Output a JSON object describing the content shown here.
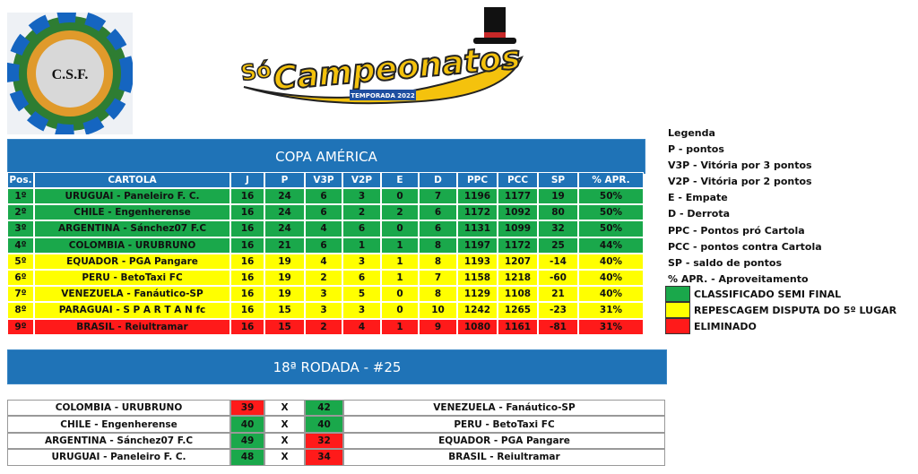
{
  "logo": {
    "text": "C.S.F."
  },
  "brand": {
    "prefix": "Só",
    "name": "Campeonatos",
    "season": "TEMPORADA 2022"
  },
  "standings": {
    "title": "COPA AMÉRICA",
    "columns": [
      "Pos.",
      "CARTOLA",
      "J",
      "P",
      "V3P",
      "V2P",
      "E",
      "D",
      "PPC",
      "PCC",
      "SP",
      "% APR."
    ],
    "rows": [
      {
        "color": "#1aa84b",
        "cells": [
          "1º",
          "URUGUAI - Paneleiro F. C.",
          "16",
          "24",
          "6",
          "3",
          "0",
          "7",
          "1196",
          "1177",
          "19",
          "50%"
        ]
      },
      {
        "color": "#1aa84b",
        "cells": [
          "2º",
          "CHILE - Engenherense",
          "16",
          "24",
          "6",
          "2",
          "2",
          "6",
          "1172",
          "1092",
          "80",
          "50%"
        ]
      },
      {
        "color": "#1aa84b",
        "cells": [
          "3º",
          "ARGENTINA - Sánchez07 F.C",
          "16",
          "24",
          "4",
          "6",
          "0",
          "6",
          "1131",
          "1099",
          "32",
          "50%"
        ]
      },
      {
        "color": "#1aa84b",
        "cells": [
          "4º",
          "COLOMBIA - URUBRUNO",
          "16",
          "21",
          "6",
          "1",
          "1",
          "8",
          "1197",
          "1172",
          "25",
          "44%"
        ]
      },
      {
        "color": "#ffff00",
        "cells": [
          "5º",
          "EQUADOR - PGA Pangare",
          "16",
          "19",
          "4",
          "3",
          "1",
          "8",
          "1193",
          "1207",
          "-14",
          "40%"
        ]
      },
      {
        "color": "#ffff00",
        "cells": [
          "6º",
          "PERU - BetoTaxi FC",
          "16",
          "19",
          "2",
          "6",
          "1",
          "7",
          "1158",
          "1218",
          "-60",
          "40%"
        ]
      },
      {
        "color": "#ffff00",
        "cells": [
          "7º",
          "VENEZUELA - Fanáutico-SP",
          "16",
          "19",
          "3",
          "5",
          "0",
          "8",
          "1129",
          "1108",
          "21",
          "40%"
        ]
      },
      {
        "color": "#ffff00",
        "cells": [
          "8º",
          "PARAGUAI - S P A R T A N fc",
          "16",
          "15",
          "3",
          "3",
          "0",
          "10",
          "1242",
          "1265",
          "-23",
          "31%"
        ]
      },
      {
        "color": "#ff1a1a",
        "cells": [
          "9º",
          "BRASIL - Reiultramar",
          "16",
          "15",
          "2",
          "4",
          "1",
          "9",
          "1080",
          "1161",
          "-81",
          "31%"
        ]
      }
    ]
  },
  "legend": {
    "title": "Legenda",
    "items": [
      "P - pontos",
      "V3P - Vitória por 3 pontos",
      "V2P - Vitória por 2 pontos",
      "E - Empate",
      "D - Derrota",
      "PPC - Pontos pró Cartola",
      "PCC - pontos contra Cartola",
      "SP - saldo de pontos",
      "% APR. - Aproveitamento"
    ],
    "zones": [
      {
        "color": "#1aa84b",
        "label": "CLASSIFICADO SEMI FINAL"
      },
      {
        "color": "#ffff00",
        "label": "REPESCAGEM DISPUTA DO 5º LUGAR"
      },
      {
        "color": "#ff1a1a",
        "label": "ELIMINADO"
      }
    ]
  },
  "round": {
    "title": "18ª RODADA - #25",
    "matches": [
      {
        "home": "COLOMBIA - URUBRUNO",
        "home_score": "39",
        "home_color": "#ff1a1a",
        "sep": "X",
        "away_score": "42",
        "away_color": "#1aa84b",
        "away": "VENEZUELA - Fanáutico-SP"
      },
      {
        "home": "CHILE - Engenherense",
        "home_score": "40",
        "home_color": "#1aa84b",
        "sep": "X",
        "away_score": "40",
        "away_color": "#1aa84b",
        "away": "PERU - BetoTaxi FC"
      },
      {
        "home": "ARGENTINA - Sánchez07 F.C",
        "home_score": "49",
        "home_color": "#1aa84b",
        "sep": "X",
        "away_score": "32",
        "away_color": "#ff1a1a",
        "away": "EQUADOR - PGA Pangare"
      },
      {
        "home": "URUGUAI - Paneleiro F. C.",
        "home_score": "48",
        "home_color": "#1aa84b",
        "sep": "X",
        "away_score": "34",
        "away_color": "#ff1a1a",
        "away": "BRASIL - Reiultramar"
      }
    ]
  }
}
